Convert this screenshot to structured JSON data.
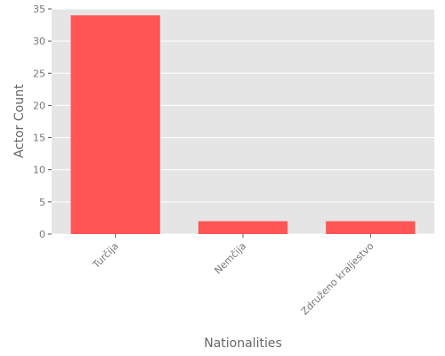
{
  "chart_data": {
    "type": "bar",
    "categories": [
      "Turčija",
      "Nemčija",
      "Združeno kraljestvo"
    ],
    "values": [
      34,
      2,
      2
    ],
    "xlabel": "Nationalities",
    "ylabel": "Actor Count",
    "ylim": [
      0,
      35
    ],
    "yticks": [
      0,
      5,
      10,
      15,
      20,
      25,
      30,
      35
    ],
    "grid": true,
    "bar_color": "#ff5555",
    "plot_background": "#e5e5e5",
    "grid_color": "#ffffff"
  }
}
